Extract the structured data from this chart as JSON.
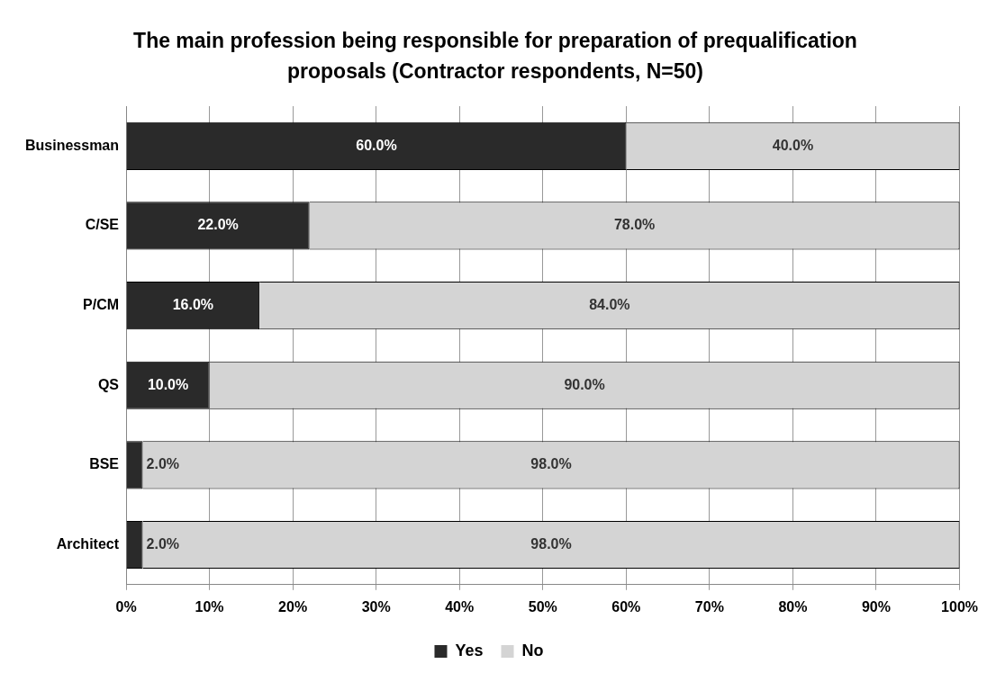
{
  "chart_data": {
    "type": "bar",
    "orientation": "horizontal",
    "stacked": true,
    "title": "The main profession being responsible for preparation of prequalification proposals (Contractor respondents, N=50)",
    "categories": [
      "Businessman",
      "C/SE",
      "P/CM",
      "QS",
      "BSE",
      "Architect"
    ],
    "series": [
      {
        "name": "Yes",
        "color": "#2a2a2a",
        "values": [
          60,
          22,
          16,
          10,
          2,
          2
        ],
        "value_labels": [
          "60.0%",
          "22.0%",
          "16.0%",
          "10.0%",
          "2.0%",
          "2.0%"
        ]
      },
      {
        "name": "No",
        "color": "#d4d4d4",
        "values": [
          40,
          78,
          84,
          90,
          98,
          98
        ],
        "value_labels": [
          "40.0%",
          "78.0%",
          "84.0%",
          "90.0%",
          "98.0%",
          "98.0%"
        ]
      }
    ],
    "xlim": [
      0,
      100
    ],
    "xticks": [
      {
        "value": 0,
        "label": "0%"
      },
      {
        "value": 10,
        "label": "10%"
      },
      {
        "value": 20,
        "label": "20%"
      },
      {
        "value": 30,
        "label": "30%"
      },
      {
        "value": 40,
        "label": "40%"
      },
      {
        "value": 50,
        "label": "50%"
      },
      {
        "value": 60,
        "label": "60%"
      },
      {
        "value": 70,
        "label": "70%"
      },
      {
        "value": 80,
        "label": "80%"
      },
      {
        "value": 90,
        "label": "90%"
      },
      {
        "value": 100,
        "label": "100%"
      }
    ],
    "grid": "x",
    "legend": "bottom"
  }
}
